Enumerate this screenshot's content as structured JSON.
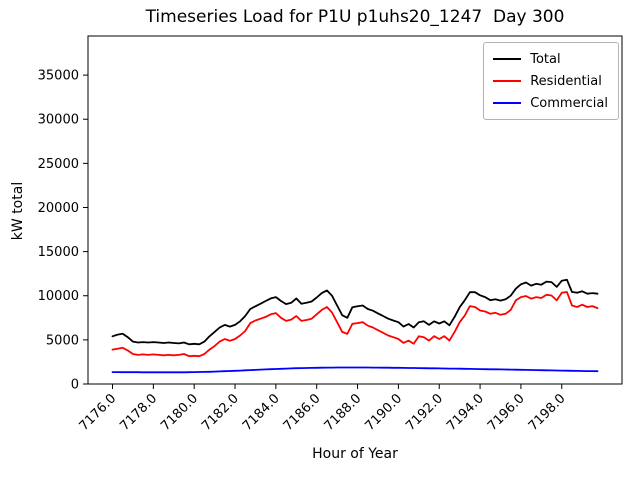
{
  "chart_data": {
    "type": "line",
    "title": "Timeseries Load for P1U p1uhs20_1247  Day 300",
    "xlabel": "Hour of Year",
    "ylabel": "kW total",
    "xlim": [
      7174.8,
      7200.95
    ],
    "ylim": [
      0,
      39430
    ],
    "grid": false,
    "legend": {
      "position": "upper right",
      "entries": [
        "Total",
        "Residential",
        "Commercial"
      ]
    },
    "xticks": {
      "values": [
        7176,
        7178,
        7180,
        7182,
        7184,
        7186,
        7188,
        7190,
        7192,
        7194,
        7196,
        7198
      ],
      "labels": [
        "7176.0",
        "7178.0",
        "7180.0",
        "7182.0",
        "7184.0",
        "7186.0",
        "7188.0",
        "7190.0",
        "7192.0",
        "7194.0",
        "7196.0",
        "7198.0"
      ]
    },
    "yticks": {
      "values": [
        0,
        5000,
        10000,
        15000,
        20000,
        25000,
        30000,
        35000
      ],
      "labels": [
        "0",
        "5000",
        "10000",
        "15000",
        "20000",
        "25000",
        "30000",
        "35000"
      ]
    },
    "x": [
      7176.0,
      7176.25,
      7176.5,
      7176.75,
      7177.0,
      7177.25,
      7177.5,
      7177.75,
      7178.0,
      7178.25,
      7178.5,
      7178.75,
      7179.0,
      7179.25,
      7179.5,
      7179.75,
      7180.0,
      7180.25,
      7180.5,
      7180.75,
      7181.0,
      7181.25,
      7181.5,
      7181.75,
      7182.0,
      7182.25,
      7182.5,
      7182.75,
      7183.0,
      7183.25,
      7183.5,
      7183.75,
      7184.0,
      7184.25,
      7184.5,
      7184.75,
      7185.0,
      7185.25,
      7185.5,
      7185.75,
      7186.0,
      7186.25,
      7186.5,
      7186.75,
      7187.0,
      7187.25,
      7187.5,
      7187.75,
      7188.0,
      7188.25,
      7188.5,
      7188.75,
      7189.0,
      7189.25,
      7189.5,
      7189.75,
      7190.0,
      7190.25,
      7190.5,
      7190.75,
      7191.0,
      7191.25,
      7191.5,
      7191.75,
      7192.0,
      7192.25,
      7192.5,
      7192.75,
      7193.0,
      7193.25,
      7193.5,
      7193.75,
      7194.0,
      7194.25,
      7194.5,
      7194.75,
      7195.0,
      7195.25,
      7195.5,
      7195.75,
      7196.0,
      7196.25,
      7196.5,
      7196.75,
      7197.0,
      7197.25,
      7197.5,
      7197.75,
      7198.0,
      7198.25,
      7198.5,
      7198.75,
      7199.0,
      7199.25,
      7199.5,
      7199.75
    ],
    "series": [
      {
        "name": "Total",
        "color": "#000000",
        "values": [
          5400,
          5600,
          5700,
          5300,
          4800,
          4700,
          4750,
          4700,
          4750,
          4700,
          4650,
          4700,
          4650,
          4600,
          4700,
          4500,
          4550,
          4500,
          4800,
          5400,
          5900,
          6400,
          6700,
          6500,
          6700,
          7100,
          7700,
          8500,
          8800,
          9100,
          9400,
          9700,
          9850,
          9400,
          9050,
          9200,
          9700,
          9100,
          9200,
          9350,
          9800,
          10300,
          10600,
          10000,
          8900,
          7800,
          7500,
          8700,
          8800,
          8900,
          8500,
          8300,
          8000,
          7700,
          7400,
          7200,
          7000,
          6500,
          6800,
          6400,
          7000,
          7100,
          6700,
          7100,
          6850,
          7100,
          6650,
          7600,
          8700,
          9500,
          10400,
          10400,
          10050,
          9850,
          9500,
          9600,
          9450,
          9600,
          10000,
          10800,
          11300,
          11500,
          11150,
          11350,
          11250,
          11600,
          11550,
          11000,
          11700,
          11820,
          10420,
          10340,
          10500,
          10230,
          10300,
          10230
        ]
      },
      {
        "name": "Residential",
        "color": "#ff0000",
        "values": [
          3900,
          4000,
          4100,
          3800,
          3400,
          3300,
          3350,
          3300,
          3350,
          3300,
          3250,
          3300,
          3250,
          3300,
          3400,
          3150,
          3200,
          3150,
          3400,
          3900,
          4300,
          4800,
          5100,
          4900,
          5100,
          5500,
          6000,
          6900,
          7200,
          7400,
          7600,
          7900,
          8030,
          7500,
          7150,
          7300,
          7700,
          7150,
          7250,
          7400,
          7900,
          8400,
          8720,
          8100,
          7000,
          5900,
          5680,
          6820,
          6900,
          7010,
          6600,
          6400,
          6100,
          5800,
          5500,
          5300,
          5100,
          4660,
          4920,
          4550,
          5400,
          5300,
          4920,
          5420,
          5100,
          5420,
          4920,
          5900,
          7000,
          7760,
          8830,
          8720,
          8330,
          8220,
          7950,
          8070,
          7840,
          7950,
          8400,
          9470,
          9850,
          9970,
          9660,
          9850,
          9740,
          10110,
          10030,
          9470,
          10340,
          10420,
          8900,
          8720,
          8980,
          8720,
          8830,
          8600
        ]
      },
      {
        "name": "Commercial",
        "color": "#0000ff",
        "values": [
          1350,
          1345,
          1340,
          1338,
          1335,
          1333,
          1331,
          1330,
          1328,
          1327,
          1326,
          1325,
          1325,
          1326,
          1330,
          1336,
          1345,
          1356,
          1370,
          1386,
          1404,
          1424,
          1446,
          1470,
          1495,
          1521,
          1548,
          1575,
          1602,
          1629,
          1655,
          1680,
          1704,
          1727,
          1748,
          1768,
          1786,
          1802,
          1816,
          1829,
          1840,
          1849,
          1856,
          1862,
          1866,
          1869,
          1870,
          1870,
          1869,
          1867,
          1864,
          1860,
          1855,
          1850,
          1844,
          1838,
          1831,
          1824,
          1817,
          1809,
          1801,
          1793,
          1784,
          1776,
          1767,
          1758,
          1749,
          1740,
          1730,
          1721,
          1711,
          1701,
          1691,
          1681,
          1671,
          1661,
          1650,
          1640,
          1629,
          1618,
          1607,
          1596,
          1585,
          1574,
          1563,
          1552,
          1541,
          1530,
          1519,
          1508,
          1497,
          1486,
          1476,
          1466,
          1456,
          1447
        ]
      }
    ]
  }
}
